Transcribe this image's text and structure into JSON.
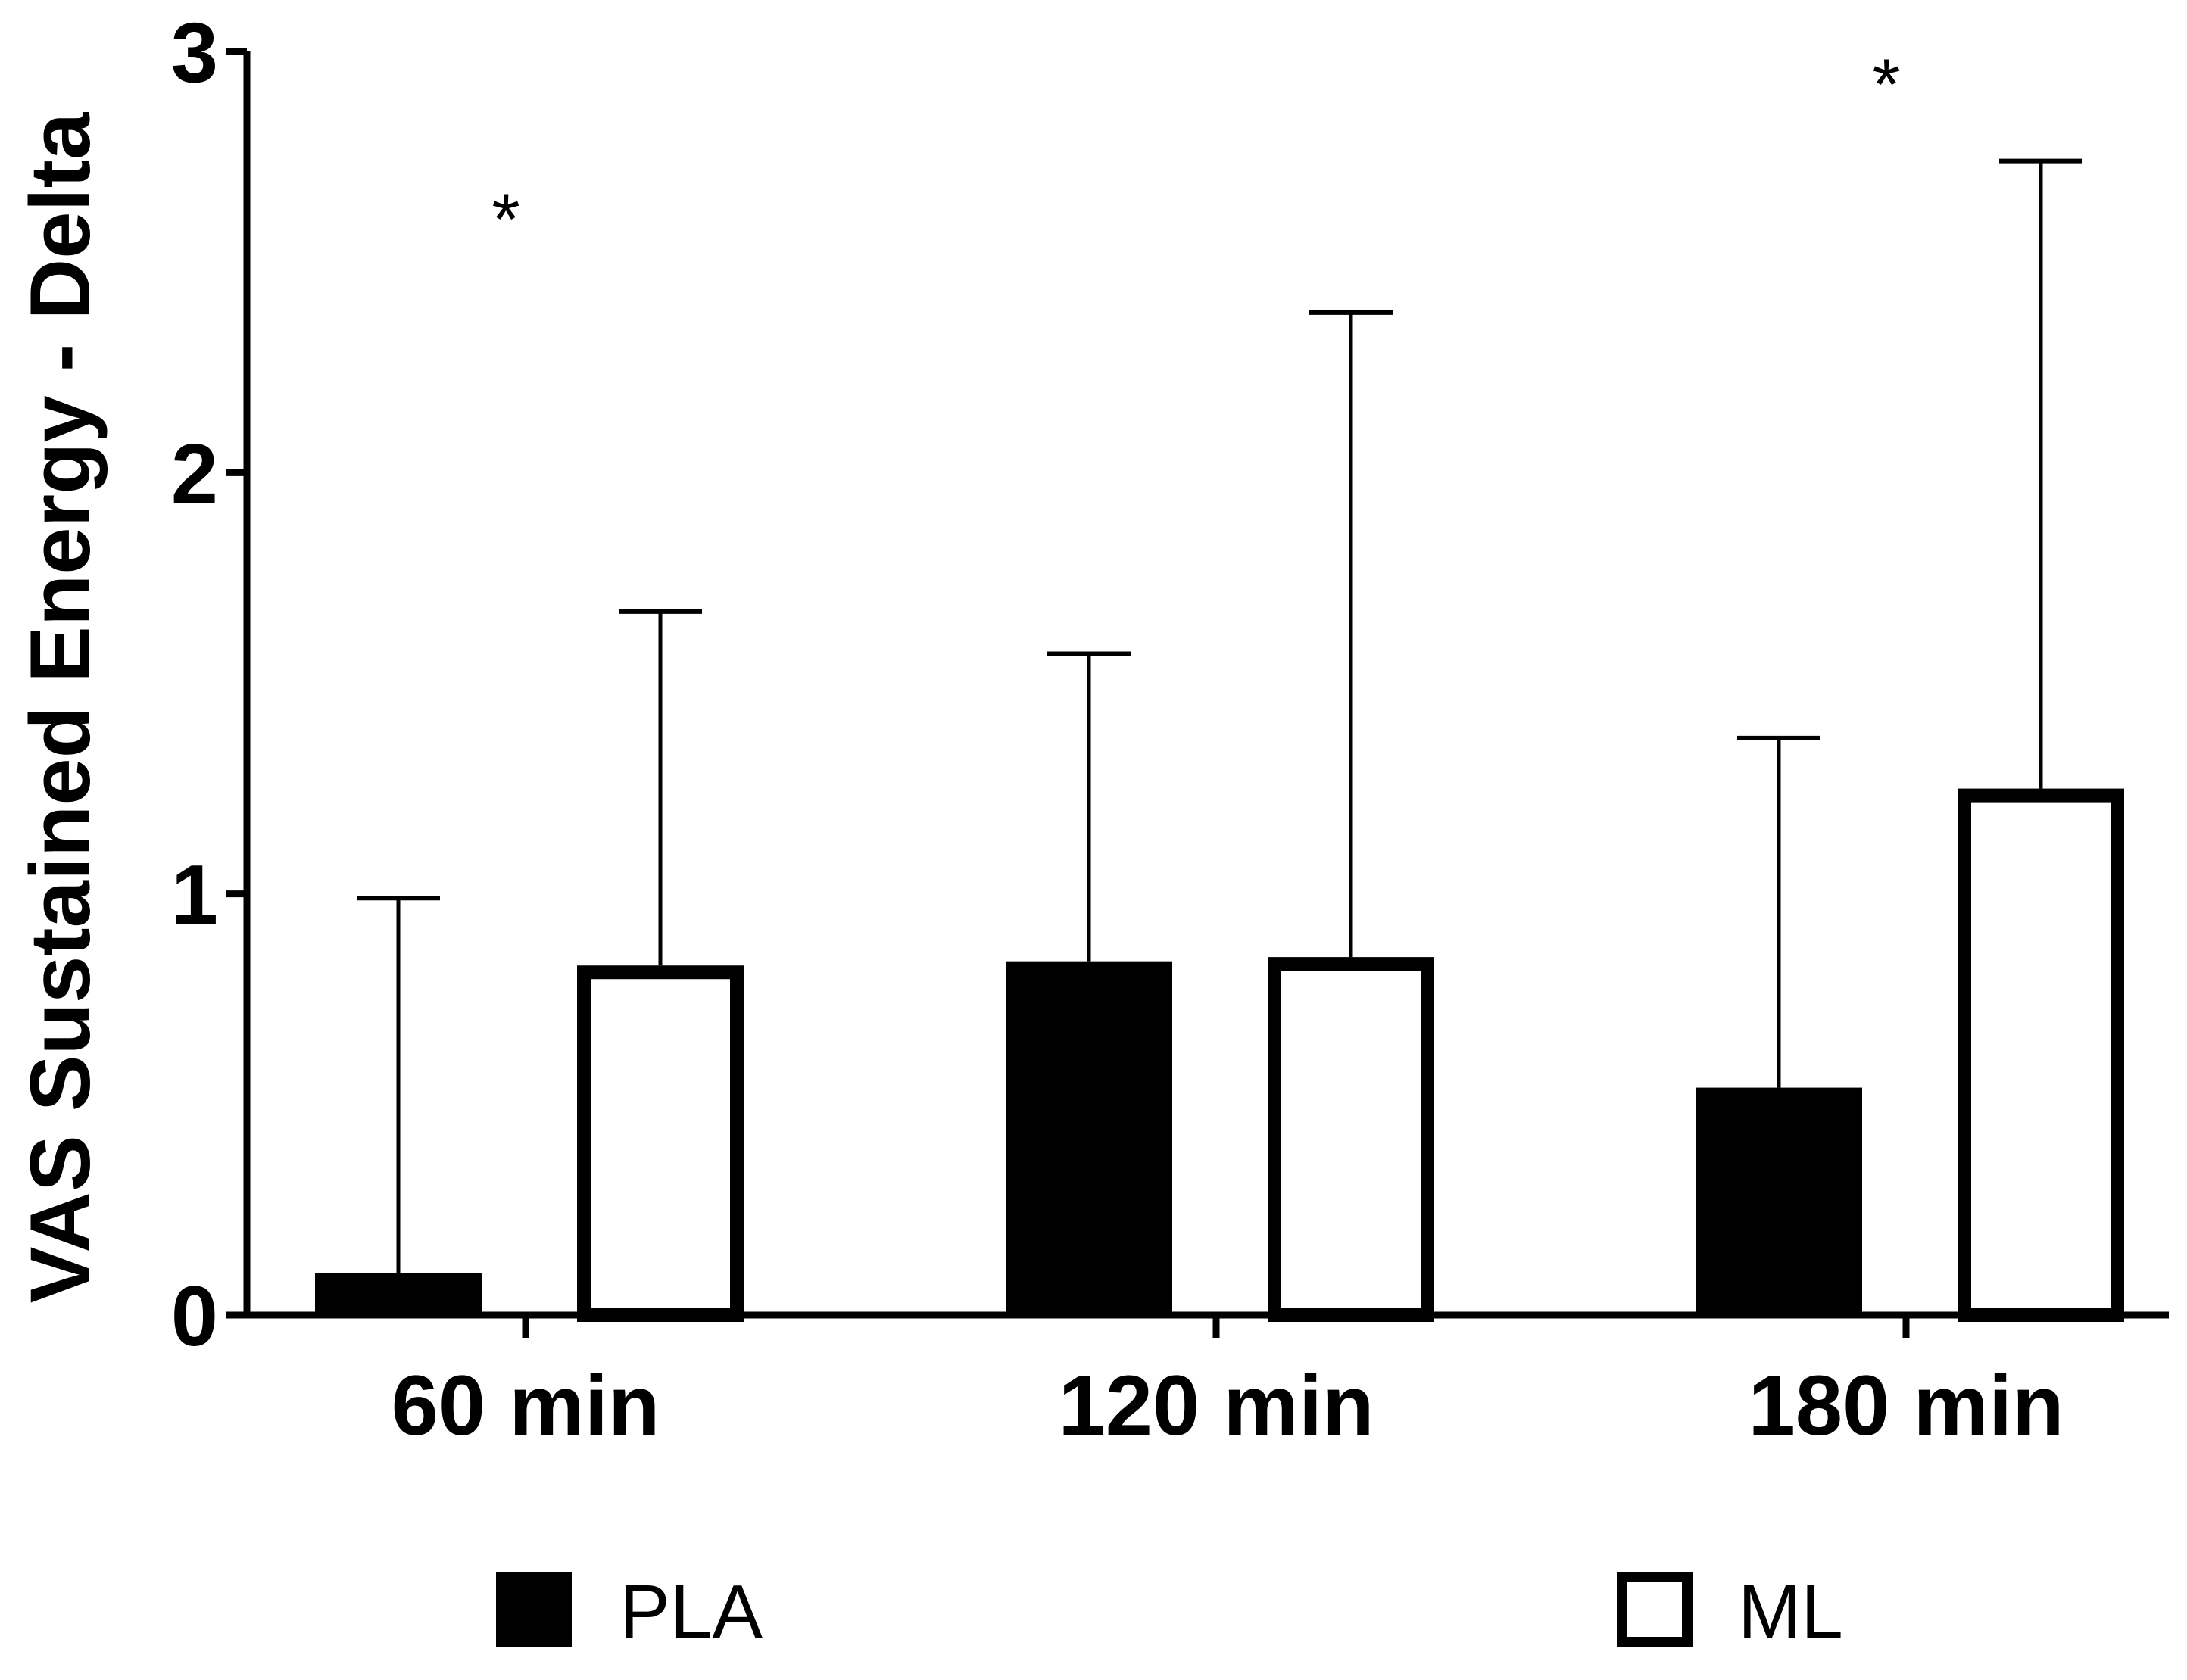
{
  "chart_data": {
    "type": "bar",
    "title": "",
    "xlabel": "",
    "ylabel": "VAS  Sustained Energy - Delta",
    "categories": [
      "60 min",
      "120 min",
      "180 min"
    ],
    "ylim": [
      0,
      3
    ],
    "yticks": [
      "0",
      "1",
      "2",
      "3"
    ],
    "series": [
      {
        "name": "PLA",
        "values": [
          0.1,
          0.84,
          0.54
        ],
        "error_upper": [
          0.99,
          1.57,
          1.37
        ],
        "fill": "#000000"
      },
      {
        "name": "ML",
        "values": [
          0.83,
          0.85,
          1.25
        ],
        "error_upper": [
          1.67,
          2.38,
          2.74
        ],
        "fill": "#ffffff"
      }
    ],
    "significance": [
      {
        "category": "60 min",
        "label": "*",
        "y": 2.65
      },
      {
        "category": "180 min",
        "label": "*",
        "y": 2.97
      }
    ],
    "legend": [
      "PLA",
      "ML"
    ],
    "legend_position": "bottom",
    "grid": false
  },
  "colors": {
    "axis": "#000000",
    "pla": "#000000",
    "ml": "#ffffff"
  }
}
